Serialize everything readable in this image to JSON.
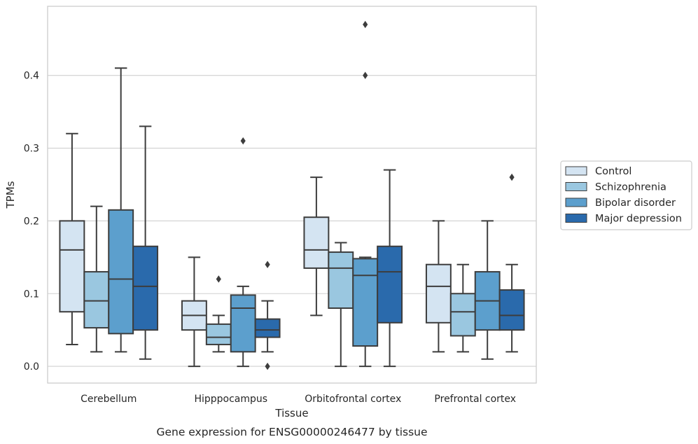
{
  "chart_data": {
    "type": "box",
    "title": "",
    "caption": "Gene expression for ENSG00000246477 by tissue",
    "xlabel": "Tissue",
    "ylabel": "TPMs",
    "ylim": [
      -0.023,
      0.495
    ],
    "yticks": [
      0.0,
      0.1,
      0.2,
      0.3,
      0.4
    ],
    "ytick_labels": [
      "0.0",
      "0.1",
      "0.2",
      "0.3",
      "0.4"
    ],
    "grid": "horizontal",
    "legend_position": "right",
    "categories": [
      "Cerebellum",
      "Hipppocampus",
      "Orbitofrontal cortex",
      "Prefrontal cortex"
    ],
    "series": [
      {
        "name": "Control",
        "color": "#d4e4f2",
        "boxes": [
          {
            "whislo": 0.03,
            "q1": 0.075,
            "med": 0.16,
            "q3": 0.2,
            "whishi": 0.32,
            "fliers": []
          },
          {
            "whislo": 0.0,
            "q1": 0.05,
            "med": 0.07,
            "q3": 0.09,
            "whishi": 0.15,
            "fliers": []
          },
          {
            "whislo": 0.07,
            "q1": 0.135,
            "med": 0.16,
            "q3": 0.205,
            "whishi": 0.26,
            "fliers": []
          },
          {
            "whislo": 0.02,
            "q1": 0.06,
            "med": 0.11,
            "q3": 0.14,
            "whishi": 0.2,
            "fliers": []
          }
        ]
      },
      {
        "name": "Schizophrenia",
        "color": "#9ac7e0",
        "boxes": [
          {
            "whislo": 0.02,
            "q1": 0.053,
            "med": 0.09,
            "q3": 0.13,
            "whishi": 0.22,
            "fliers": []
          },
          {
            "whislo": 0.02,
            "q1": 0.03,
            "med": 0.04,
            "q3": 0.058,
            "whishi": 0.07,
            "fliers": [
              0.12
            ]
          },
          {
            "whislo": 0.0,
            "q1": 0.08,
            "med": 0.135,
            "q3": 0.157,
            "whishi": 0.17,
            "fliers": []
          },
          {
            "whislo": 0.02,
            "q1": 0.042,
            "med": 0.075,
            "q3": 0.1,
            "whishi": 0.14,
            "fliers": []
          }
        ]
      },
      {
        "name": "Bipolar disorder",
        "color": "#5c9fcd",
        "boxes": [
          {
            "whislo": 0.02,
            "q1": 0.045,
            "med": 0.12,
            "q3": 0.215,
            "whishi": 0.41,
            "fliers": []
          },
          {
            "whislo": 0.0,
            "q1": 0.02,
            "med": 0.08,
            "q3": 0.098,
            "whishi": 0.11,
            "fliers": [
              0.31
            ]
          },
          {
            "whislo": 0.0,
            "q1": 0.028,
            "med": 0.125,
            "q3": 0.148,
            "whishi": 0.15,
            "fliers": [
              0.4,
              0.47
            ]
          },
          {
            "whislo": 0.01,
            "q1": 0.05,
            "med": 0.09,
            "q3": 0.13,
            "whishi": 0.2,
            "fliers": []
          }
        ]
      },
      {
        "name": "Major depression",
        "color": "#2a6aac",
        "boxes": [
          {
            "whislo": 0.01,
            "q1": 0.05,
            "med": 0.11,
            "q3": 0.165,
            "whishi": 0.33,
            "fliers": []
          },
          {
            "whislo": 0.02,
            "q1": 0.04,
            "med": 0.05,
            "q3": 0.065,
            "whishi": 0.09,
            "fliers": [
              0.0,
              0.14
            ]
          },
          {
            "whislo": 0.0,
            "q1": 0.06,
            "med": 0.13,
            "q3": 0.165,
            "whishi": 0.27,
            "fliers": []
          },
          {
            "whislo": 0.02,
            "q1": 0.05,
            "med": 0.07,
            "q3": 0.105,
            "whishi": 0.14,
            "fliers": [
              0.26
            ]
          }
        ]
      }
    ]
  }
}
